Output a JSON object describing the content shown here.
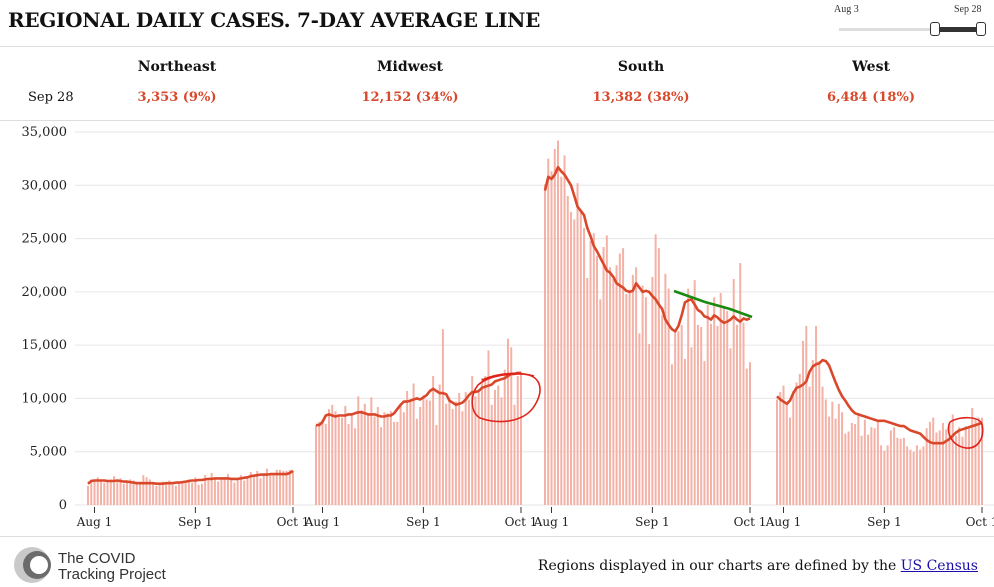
{
  "header": {
    "title": "REGIONAL DAILY CASES. 7-DAY AVERAGE LINE"
  },
  "range_slider": {
    "start_label": "Aug 3",
    "end_label": "Sep 28"
  },
  "summary": {
    "date": "Sep 28",
    "regions": [
      {
        "name": "Northeast",
        "value": "3,353 (9%)"
      },
      {
        "name": "Midwest",
        "value": "12,152 (34%)"
      },
      {
        "name": "South",
        "value": "13,382 (38%)"
      },
      {
        "name": "West",
        "value": "6,484 (18%)"
      }
    ]
  },
  "colors": {
    "bar": "#f4b1a6",
    "line": "#d9482b",
    "annot_red": "#e0241b",
    "annot_green": "#1b8a12",
    "grid": "#e6e6e6"
  },
  "chart_data": {
    "type": "bar",
    "title": "REGIONAL DAILY CASES. 7-DAY AVERAGE LINE",
    "ylim": [
      0,
      35000
    ],
    "yticks": [
      0,
      5000,
      10000,
      15000,
      20000,
      25000,
      30000,
      35000
    ],
    "ytick_labels": [
      "0",
      "5,000",
      "10,000",
      "15,000",
      "20,000",
      "25,000",
      "30,000",
      "35,000"
    ],
    "xtick_labels": [
      "Aug 1",
      "Sep 1",
      "Oct 1"
    ],
    "start_date": "Jul 30",
    "days": 64,
    "series": [
      {
        "name": "Northeast",
        "values": [
          1800,
          2400,
          2300,
          2600,
          2200,
          2100,
          2200,
          2400,
          2700,
          2200,
          2500,
          2000,
          2100,
          2400,
          2300,
          2000,
          2200,
          2800,
          2600,
          2400,
          2100,
          1800,
          2000,
          2200,
          2100,
          2300,
          1900,
          1800,
          2000,
          2200,
          2300,
          2400,
          2100,
          2600,
          1900,
          2000,
          2800,
          2300,
          3000,
          2500,
          2200,
          2400,
          2600,
          2900,
          2400,
          2100,
          2500,
          2800,
          2300,
          2700,
          3100,
          2600,
          3200,
          2500,
          2800,
          3400,
          2900,
          3000,
          3300,
          3300,
          3200,
          3200,
          3300,
          3200
        ],
        "avg": [
          2000,
          2250,
          2300,
          2300,
          2300,
          2300,
          2250,
          2250,
          2250,
          2300,
          2250,
          2200,
          2200,
          2150,
          2100,
          2050,
          2050,
          2050,
          2050,
          2050,
          2050,
          2000,
          2000,
          2000,
          2050,
          2050,
          2050,
          2100,
          2100,
          2150,
          2200,
          2250,
          2300,
          2300,
          2350,
          2350,
          2400,
          2450,
          2450,
          2500,
          2500,
          2500,
          2500,
          2500,
          2450,
          2450,
          2450,
          2500,
          2550,
          2600,
          2700,
          2750,
          2800,
          2850,
          2850,
          2850,
          2900,
          2900,
          2900,
          2900,
          2900,
          2900,
          3000,
          3200
        ]
      },
      {
        "name": "Midwest",
        "values": [
          7500,
          7800,
          8000,
          7600,
          9000,
          9400,
          8800,
          8500,
          8200,
          9300,
          7600,
          8500,
          7200,
          10200,
          8900,
          9500,
          8600,
          10100,
          8300,
          9200,
          7300,
          8700,
          8600,
          8800,
          7800,
          7800,
          9500,
          8700,
          10700,
          9700,
          11400,
          8100,
          9200,
          10300,
          9900,
          9800,
          12100,
          7500,
          11300,
          16500,
          9500,
          10100,
          9000,
          9700,
          10500,
          8800,
          10600,
          9900,
          12100,
          10200,
          10800,
          11900,
          12100,
          14500,
          9400,
          10800,
          11200,
          10100,
          12700,
          15600,
          14800,
          9400,
          12100,
          12500
        ],
        "avg": [
          7500,
          7500,
          7800,
          8400,
          8500,
          8400,
          8300,
          8400,
          8400,
          8400,
          8500,
          8500,
          8600,
          8700,
          8700,
          8600,
          8500,
          8500,
          8500,
          8400,
          8300,
          8300,
          8400,
          8400,
          8600,
          9000,
          9400,
          9700,
          9700,
          9800,
          9900,
          10000,
          9900,
          10100,
          10300,
          10700,
          10900,
          10700,
          10500,
          10500,
          10400,
          9800,
          9600,
          9400,
          9500,
          9600,
          9900,
          10300,
          10600,
          10600,
          10700,
          11000,
          11100,
          11200,
          11300,
          11600,
          11700,
          11800,
          11900,
          12100,
          12300,
          12300,
          12400,
          12400
        ]
      },
      {
        "name": "South",
        "values": [
          30100,
          32500,
          31300,
          33400,
          34200,
          30800,
          32800,
          29000,
          27500,
          26800,
          30200,
          27600,
          26000,
          21300,
          24800,
          25500,
          23400,
          19300,
          24200,
          25300,
          22300,
          21200,
          22500,
          23600,
          24100,
          19800,
          20200,
          21600,
          22300,
          16100,
          20600,
          19500,
          15100,
          21400,
          25400,
          24100,
          17800,
          21700,
          20300,
          13200,
          16400,
          16300,
          16900,
          13700,
          20300,
          14800,
          21100,
          16900,
          16700,
          13500,
          18800,
          17000,
          19500,
          16800,
          19900,
          18700,
          18200,
          14700,
          21200,
          16900,
          22700,
          17100,
          12800,
          13400
        ],
        "avg": [
          29500,
          30800,
          30600,
          31000,
          31700,
          31300,
          31000,
          30500,
          30000,
          29000,
          28000,
          27600,
          27200,
          26000,
          25200,
          24300,
          23800,
          23200,
          22600,
          22000,
          21800,
          21400,
          20800,
          20600,
          20400,
          20100,
          20000,
          20100,
          20800,
          20400,
          20000,
          20100,
          20000,
          19600,
          19300,
          18800,
          18400,
          17400,
          16900,
          16500,
          16300,
          16800,
          17800,
          19000,
          19200,
          19300,
          18800,
          18300,
          18100,
          17700,
          17600,
          17400,
          17800,
          17600,
          17300,
          17100,
          17200,
          17400,
          17700,
          17400,
          17200,
          17500,
          17400,
          17500
        ]
      },
      {
        "name": "West",
        "values": [
          9900,
          10600,
          11200,
          9600,
          8200,
          10700,
          11500,
          12300,
          15400,
          16800,
          11100,
          13600,
          16800,
          13500,
          11100,
          9900,
          8300,
          9700,
          8100,
          9500,
          8700,
          6700,
          6900,
          7700,
          7600,
          8400,
          6500,
          8000,
          6600,
          7300,
          7200,
          7900,
          5600,
          5100,
          5600,
          7000,
          7300,
          6300,
          6200,
          6300,
          5500,
          5200,
          5000,
          5600,
          5200,
          5500,
          7200,
          7800,
          8200,
          6800,
          7000,
          7700,
          7100,
          7700,
          8500,
          6500,
          7300,
          6400,
          7400,
          7200,
          9100,
          8100,
          8200,
          8200
        ],
        "avg": [
          10200,
          9900,
          9700,
          9500,
          9800,
          10500,
          11000,
          11100,
          11300,
          11600,
          12500,
          13000,
          13200,
          13300,
          13600,
          13500,
          13100,
          12300,
          11500,
          10800,
          10200,
          9800,
          9300,
          8900,
          8600,
          8500,
          8400,
          8300,
          8200,
          8100,
          8000,
          7900,
          7900,
          7900,
          7800,
          7700,
          7600,
          7500,
          7400,
          7400,
          7200,
          7000,
          6900,
          6800,
          6700,
          6400,
          6100,
          5900,
          5800,
          5800,
          5800,
          5800,
          6000,
          6200,
          6500,
          6800,
          7000,
          7100,
          7200,
          7300,
          7400,
          7500,
          7600,
          7700
        ]
      }
    ]
  },
  "footer": {
    "org_line1": "The COVID",
    "org_line2": "Tracking Project",
    "note_text": "Regions displayed in our charts are defined by the",
    "note_link": "US Census"
  }
}
